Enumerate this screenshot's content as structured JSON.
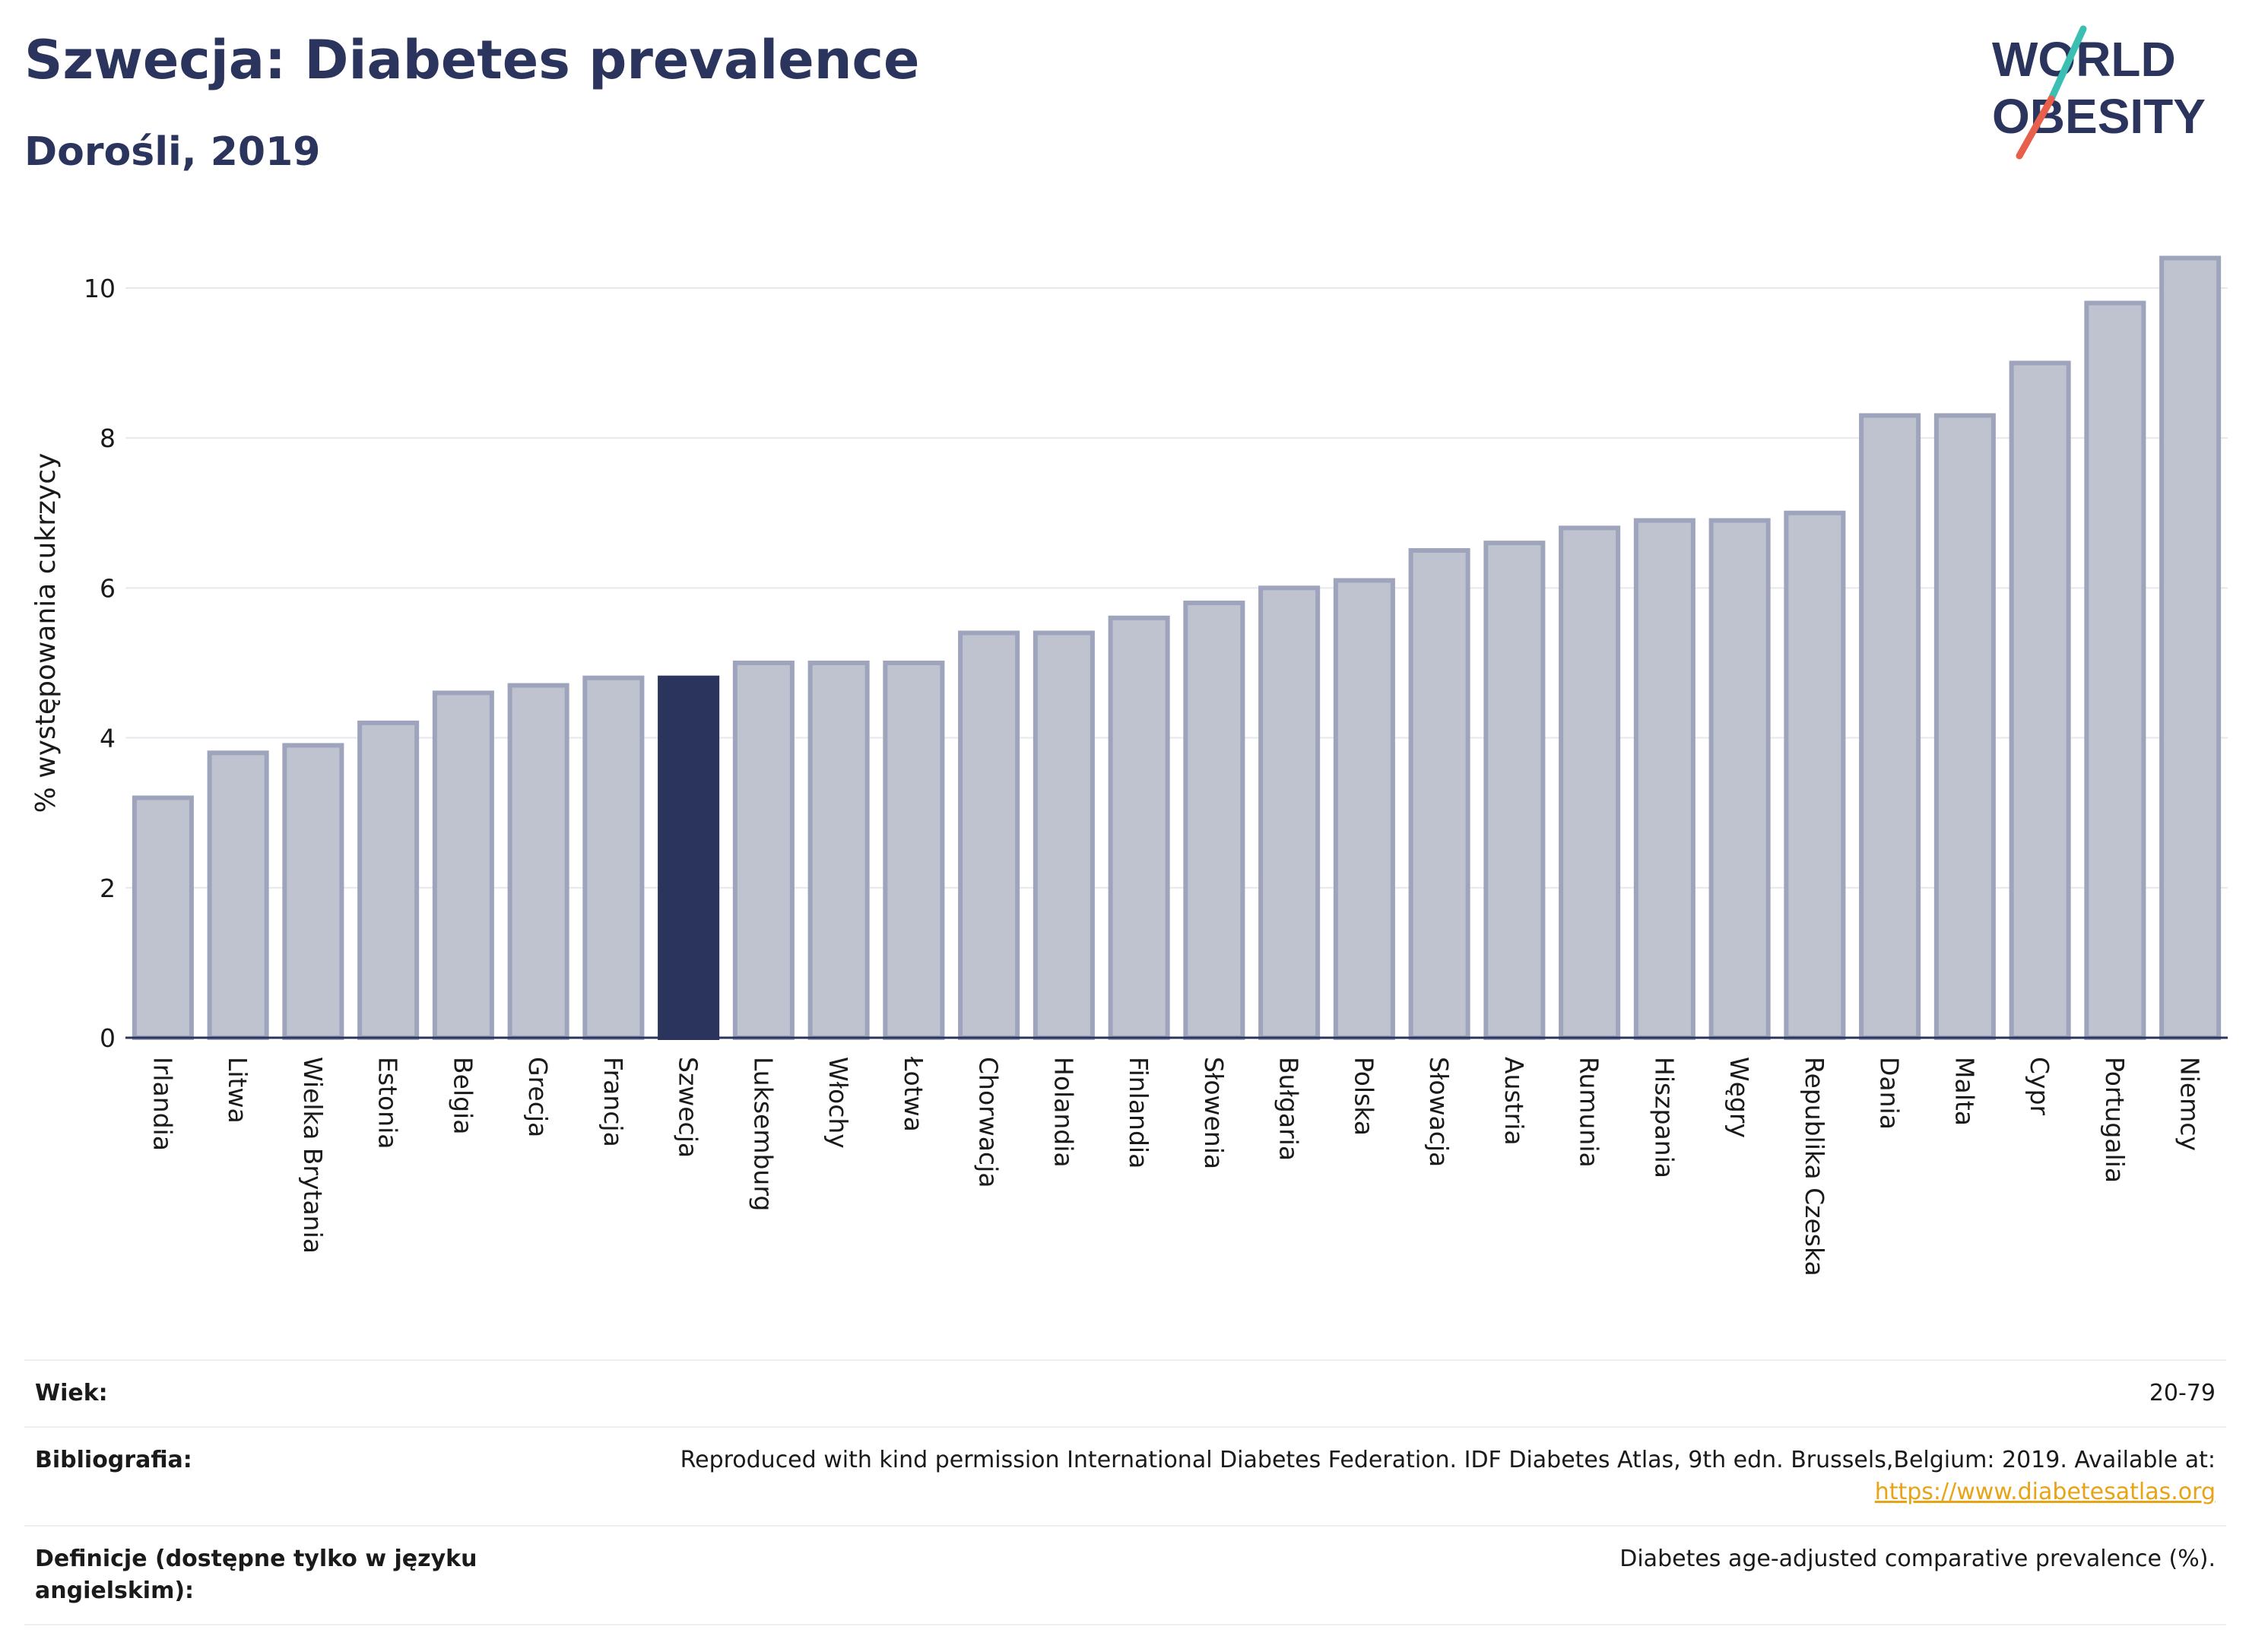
{
  "header": {
    "title": "Szwecja: Diabetes prevalence",
    "subtitle": "Dorośli, 2019"
  },
  "logo": {
    "line1": "WORLD",
    "line2": "OBESITY",
    "accent_teal": "#3bbfb2",
    "accent_coral": "#e8604c",
    "text_color": "#2b345c"
  },
  "colors": {
    "bar_default": "#bfc3d0",
    "bar_default_stroke": "#9ea4bb",
    "bar_highlight": "#2b345c",
    "grid": "#e6e8ef",
    "axis": "#2b345c"
  },
  "chart_data": {
    "type": "bar",
    "ylabel": "% występowania cukrzycy",
    "ylim": [
      0,
      10.8
    ],
    "yticks": [
      0,
      2,
      4,
      6,
      8,
      10
    ],
    "grid": true,
    "highlight": "Szwecja",
    "categories": [
      "Irlandia",
      "Litwa",
      "Wielka Brytania",
      "Estonia",
      "Belgia",
      "Grecja",
      "Francja",
      "Szwecja",
      "Luksemburg",
      "Włochy",
      "Łotwa",
      "Chorwacja",
      "Holandia",
      "Finlandia",
      "Słowenia",
      "Bułgaria",
      "Polska",
      "Słowacja",
      "Austria",
      "Rumunia",
      "Hiszpania",
      "Węgry",
      "Republika Czeska",
      "Dania",
      "Malta",
      "Cypr",
      "Portugalia",
      "Niemcy"
    ],
    "values": [
      3.2,
      3.8,
      3.9,
      4.2,
      4.6,
      4.7,
      4.8,
      4.8,
      5.0,
      5.0,
      5.0,
      5.4,
      5.4,
      5.6,
      5.8,
      6.0,
      6.1,
      6.5,
      6.6,
      6.8,
      6.9,
      6.9,
      7.0,
      8.3,
      8.3,
      9.0,
      9.8,
      10.4
    ]
  },
  "info": [
    {
      "key": "Wiek:",
      "value": "20-79"
    },
    {
      "key": "Bibliografia:",
      "value": "Reproduced with kind permission International Diabetes Federation. IDF Diabetes Atlas, 9th edn. Brussels,Belgium: 2019. Available at:",
      "link": "https://www.diabetesatlas.org"
    },
    {
      "key": "Definicje (dostępne tylko w języku angielskim):",
      "value": "Diabetes age-adjusted comparative prevalence (%)."
    }
  ]
}
